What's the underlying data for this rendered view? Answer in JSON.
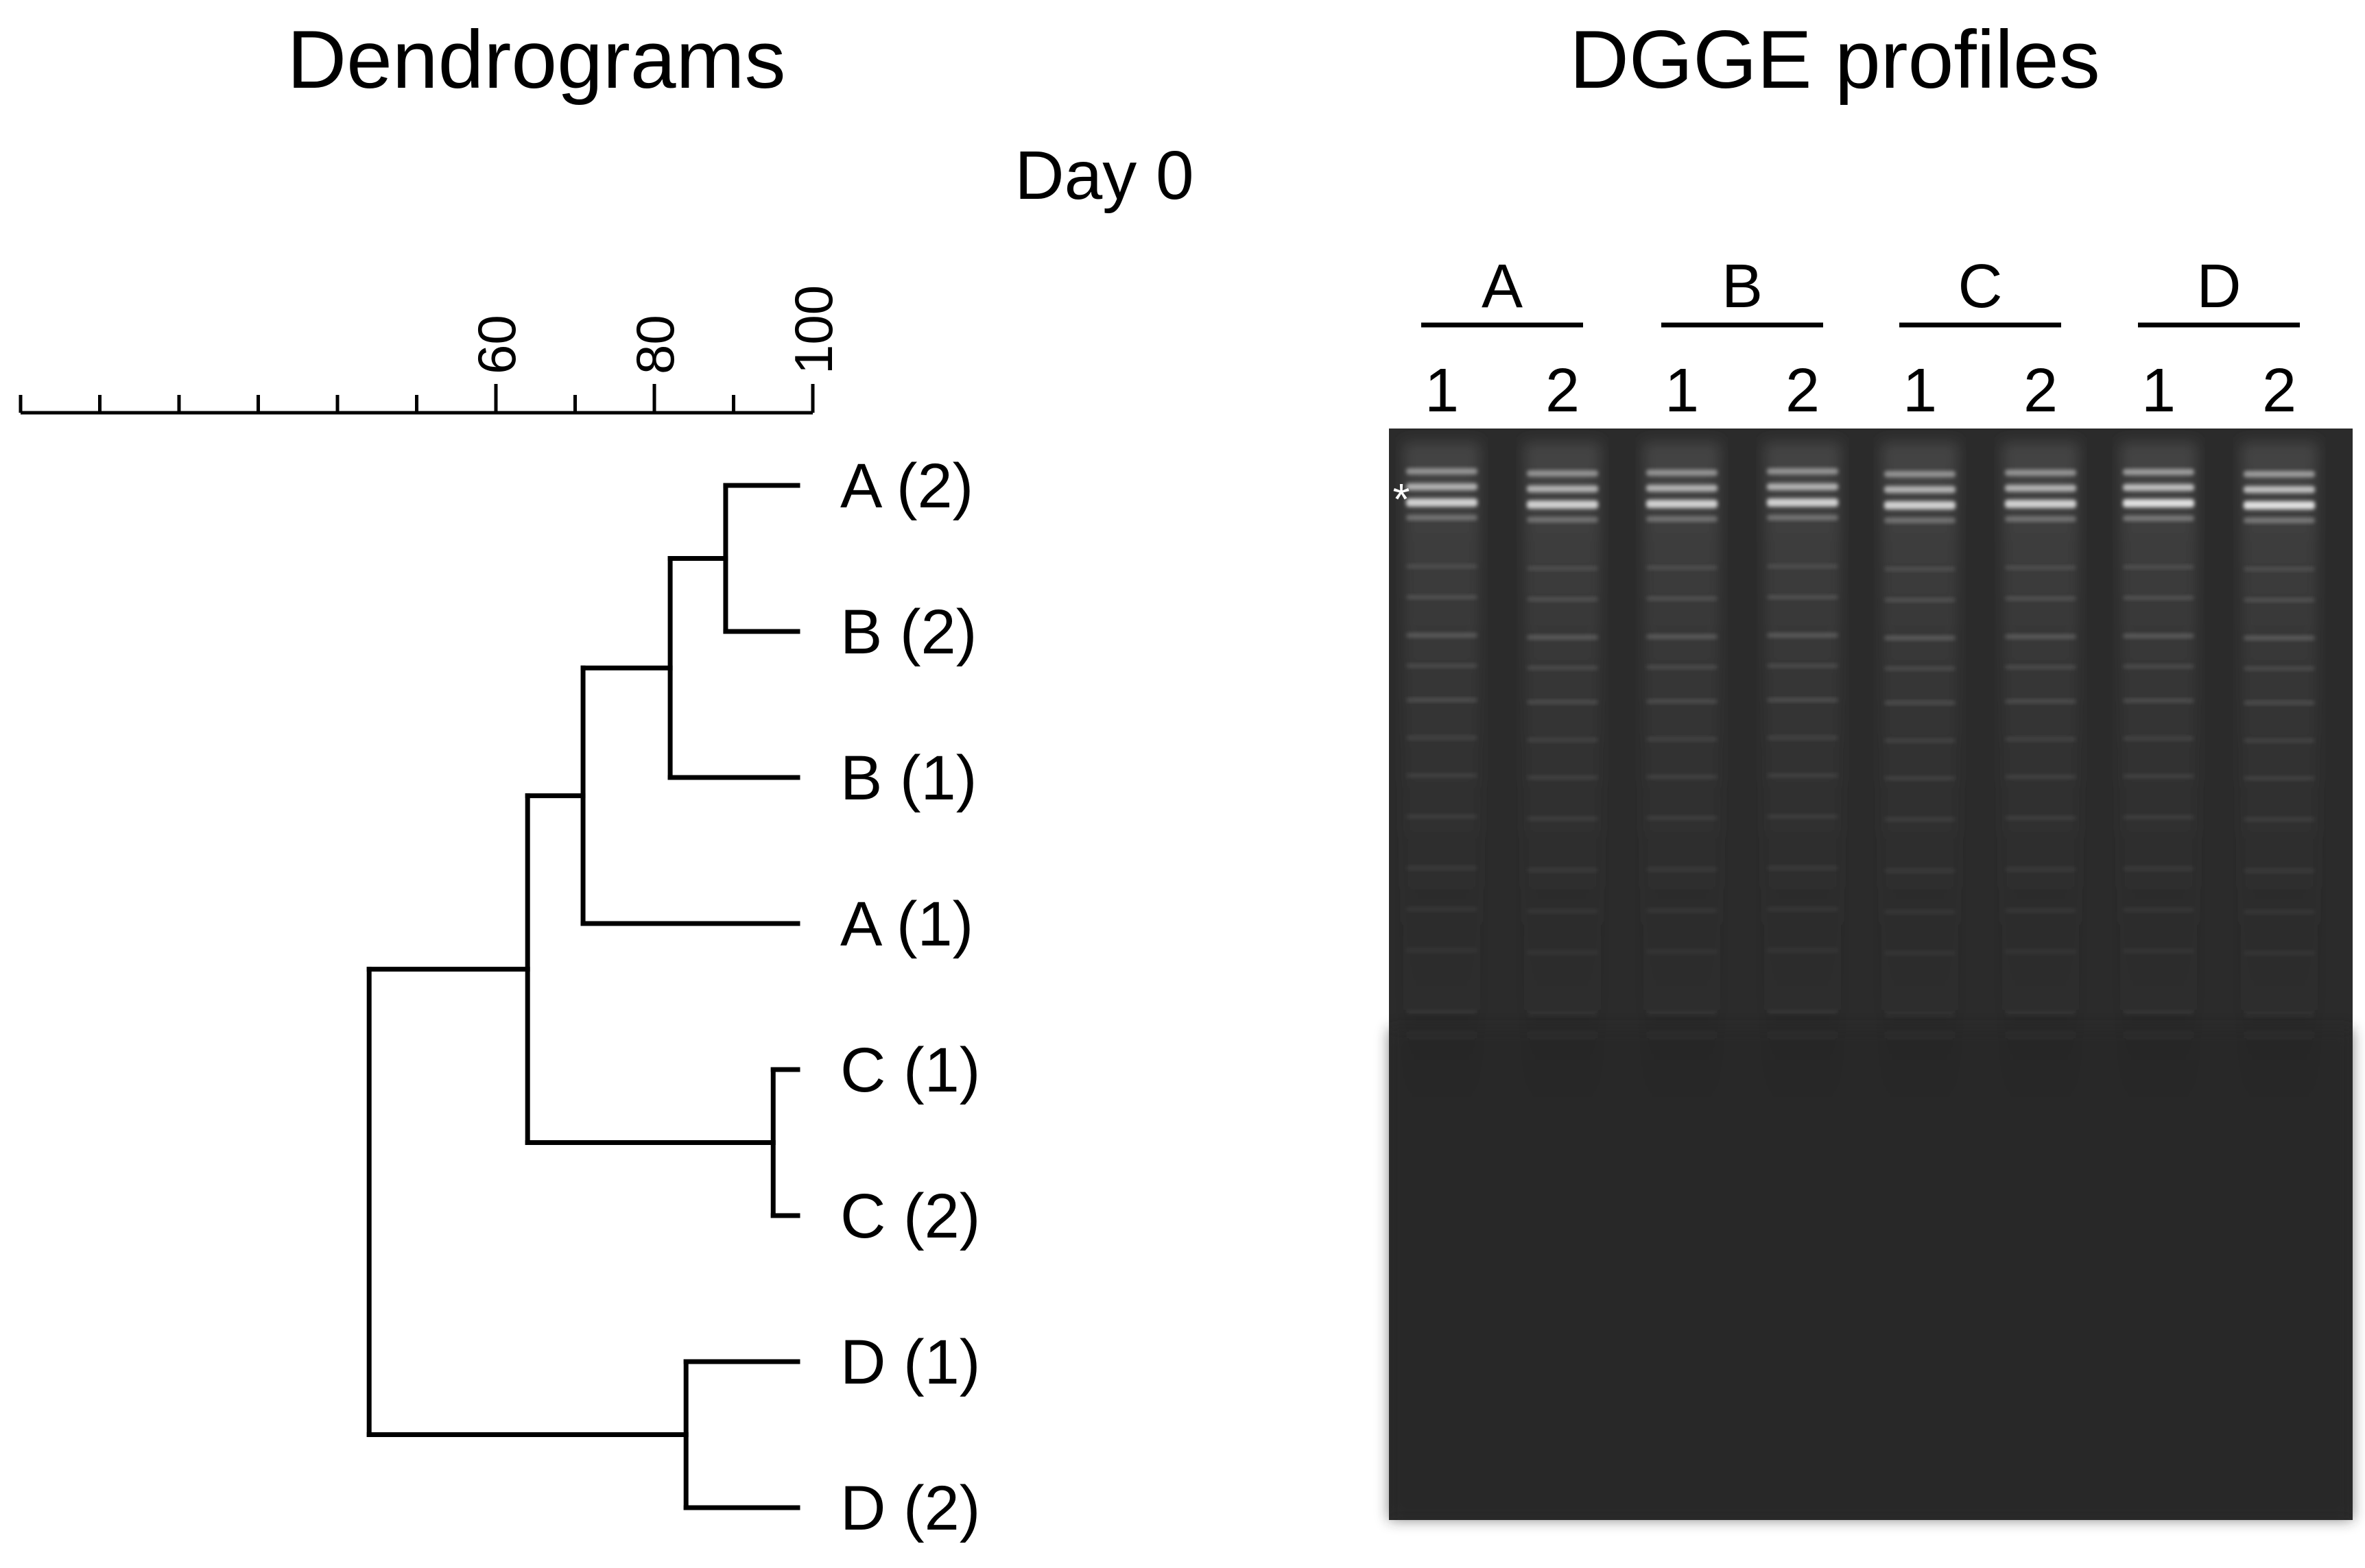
{
  "titles": {
    "left": "Dendrograms",
    "right": "DGGE profiles",
    "day": "Day 0"
  },
  "scale": {
    "min": 0,
    "max": 100,
    "minor_step": 10,
    "tick_labels": [
      "60",
      "80",
      "100"
    ]
  },
  "dendrogram": {
    "leaves": [
      "A (2)",
      "B (2)",
      "B (1)",
      "A (1)",
      "C (1)",
      "C (2)",
      "D (1)",
      "D (2)"
    ],
    "merges": [
      {
        "a": "leaf:0",
        "b": "leaf:1",
        "similarity": 89
      },
      {
        "a": "node:0",
        "b": "leaf:2",
        "similarity": 82
      },
      {
        "a": "node:1",
        "b": "leaf:3",
        "similarity": 71
      },
      {
        "a": "leaf:4",
        "b": "leaf:5",
        "similarity": 95
      },
      {
        "a": "node:2",
        "b": "node:3",
        "similarity": 64
      },
      {
        "a": "leaf:6",
        "b": "leaf:7",
        "similarity": 84
      },
      {
        "a": "node:4",
        "b": "node:5",
        "similarity": 44
      }
    ]
  },
  "gel": {
    "marker": "*",
    "groups": [
      {
        "label": "A",
        "lanes": [
          "1",
          "2"
        ]
      },
      {
        "label": "B",
        "lanes": [
          "1",
          "2"
        ]
      },
      {
        "label": "C",
        "lanes": [
          "1",
          "2"
        ]
      },
      {
        "label": "D",
        "lanes": [
          "1",
          "2"
        ]
      }
    ],
    "colors": {
      "background": "#2b2b2b",
      "lane": "#363636",
      "band": "#e8e8e8"
    }
  }
}
